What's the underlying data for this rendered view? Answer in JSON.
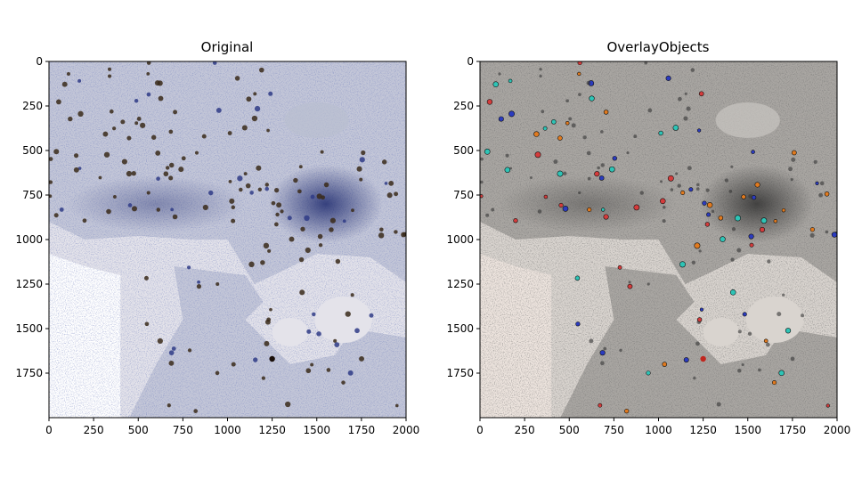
{
  "figure": {
    "panels": [
      {
        "title": "Original"
      },
      {
        "title": "OverlayObjects"
      }
    ]
  },
  "colors": {
    "stain_blue": "#2f3b86",
    "tissue_light": "#c4c7d8",
    "background_left": "#e4e3ea",
    "background_right": "#d9d4cf",
    "overlay_pad": "#ede4de",
    "nuclei_brown": "#3a2a1a"
  },
  "chart_data": [
    {
      "type": "image",
      "title": "Original",
      "xlabel": "",
      "ylabel": "",
      "xlim": [
        0,
        2000
      ],
      "ylim": [
        2000,
        0
      ],
      "xticks": [
        0,
        250,
        500,
        750,
        1000,
        1250,
        1500,
        1750,
        2000
      ],
      "yticks": [
        0,
        250,
        500,
        750,
        1000,
        1250,
        1500,
        1750
      ],
      "grid": false
    },
    {
      "type": "image",
      "title": "OverlayObjects",
      "xlabel": "",
      "ylabel": "",
      "xlim": [
        0,
        2000
      ],
      "ylim": [
        2000,
        0
      ],
      "xticks": [
        0,
        250,
        500,
        750,
        1000,
        1250,
        1500,
        1750,
        2000
      ],
      "yticks": [
        0,
        250,
        500,
        750,
        1000,
        1250,
        1500,
        1750
      ],
      "grid": false
    }
  ]
}
